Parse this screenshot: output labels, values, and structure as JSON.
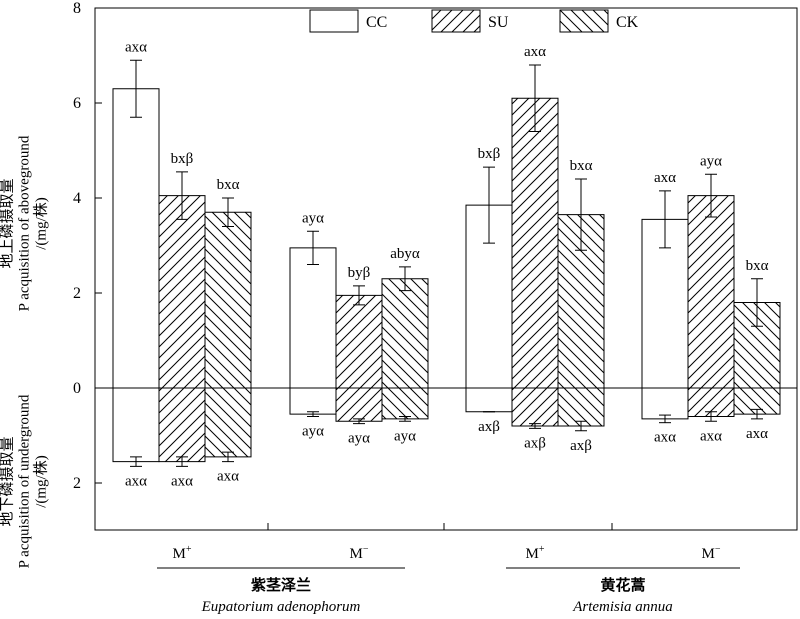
{
  "y_axis": {
    "upper_label_zh": "地上磷摄取量",
    "upper_label_en": "P acquisition of aboveground",
    "upper_unit": "/(mg/株)",
    "lower_label_zh": "地下磷摄取量",
    "lower_label_en": "P acquisition of underground",
    "lower_unit": "/(mg/株)"
  },
  "chart_data": {
    "type": "bar",
    "ylim": [
      -3,
      8
    ],
    "yticks": [
      {
        "value": 8,
        "label": "8"
      },
      {
        "value": 6,
        "label": "6"
      },
      {
        "value": 4,
        "label": "4"
      },
      {
        "value": 2,
        "label": "2"
      },
      {
        "value": 0,
        "label": "0"
      },
      {
        "value": -2,
        "label": "2"
      }
    ],
    "grid": false,
    "legend_position": "top-right",
    "series": [
      {
        "name": "CC",
        "pattern": "open"
      },
      {
        "name": "SU",
        "pattern": "hatch-forward"
      },
      {
        "name": "CK",
        "pattern": "hatch-back"
      }
    ],
    "groups": [
      {
        "label": "M+",
        "above": [
          {
            "series": "CC",
            "value": 6.3,
            "error": 0.6,
            "letter": "axα"
          },
          {
            "series": "SU",
            "value": 4.05,
            "error": 0.5,
            "letter": "bxβ"
          },
          {
            "series": "CK",
            "value": 3.7,
            "error": 0.3,
            "letter": "bxα"
          }
        ],
        "below": [
          {
            "series": "CC",
            "value": -1.55,
            "error": 0.1,
            "letter": "axα"
          },
          {
            "series": "SU",
            "value": -1.55,
            "error": 0.1,
            "letter": "axα"
          },
          {
            "series": "CK",
            "value": -1.45,
            "error": 0.1,
            "letter": "axα"
          }
        ]
      },
      {
        "label": "M−",
        "above": [
          {
            "series": "CC",
            "value": 2.95,
            "error": 0.35,
            "letter": "ayα"
          },
          {
            "series": "SU",
            "value": 1.95,
            "error": 0.2,
            "letter": "byβ"
          },
          {
            "series": "CK",
            "value": 2.3,
            "error": 0.25,
            "letter": "abyα"
          }
        ],
        "below": [
          {
            "series": "CC",
            "value": -0.55,
            "error": 0.05,
            "letter": "ayα"
          },
          {
            "series": "SU",
            "value": -0.7,
            "error": 0.05,
            "letter": "ayα"
          },
          {
            "series": "CK",
            "value": -0.65,
            "error": 0.05,
            "letter": "ayα"
          }
        ]
      },
      {
        "label": "M+",
        "above": [
          {
            "series": "CC",
            "value": 3.85,
            "error": 0.8,
            "letter": "bxβ"
          },
          {
            "series": "SU",
            "value": 6.1,
            "error": 0.7,
            "letter": "axα"
          },
          {
            "series": "CK",
            "value": 3.65,
            "error": 0.75,
            "letter": "bxα"
          }
        ],
        "below": [
          {
            "series": "CC",
            "value": -0.5,
            "error": 0.0,
            "letter": "axβ"
          },
          {
            "series": "SU",
            "value": -0.8,
            "error": 0.05,
            "letter": "axβ"
          },
          {
            "series": "CK",
            "value": -0.8,
            "error": 0.1,
            "letter": "axβ"
          }
        ]
      },
      {
        "label": "M−",
        "above": [
          {
            "series": "CC",
            "value": 3.55,
            "error": 0.6,
            "letter": "axα"
          },
          {
            "series": "SU",
            "value": 4.05,
            "error": 0.45,
            "letter": "ayα"
          },
          {
            "series": "CK",
            "value": 1.8,
            "error": 0.5,
            "letter": "bxα"
          }
        ],
        "below": [
          {
            "series": "CC",
            "value": -0.65,
            "error": 0.08,
            "letter": "axα"
          },
          {
            "series": "SU",
            "value": -0.6,
            "error": 0.1,
            "letter": "axα"
          },
          {
            "series": "CK",
            "value": -0.55,
            "error": 0.1,
            "letter": "axα"
          }
        ]
      }
    ],
    "species": [
      {
        "zh": "紫茎泽兰",
        "latin": "Eupatorium adenophorum"
      },
      {
        "zh": "黄花蒿",
        "latin": "Artemisia annua"
      }
    ]
  }
}
